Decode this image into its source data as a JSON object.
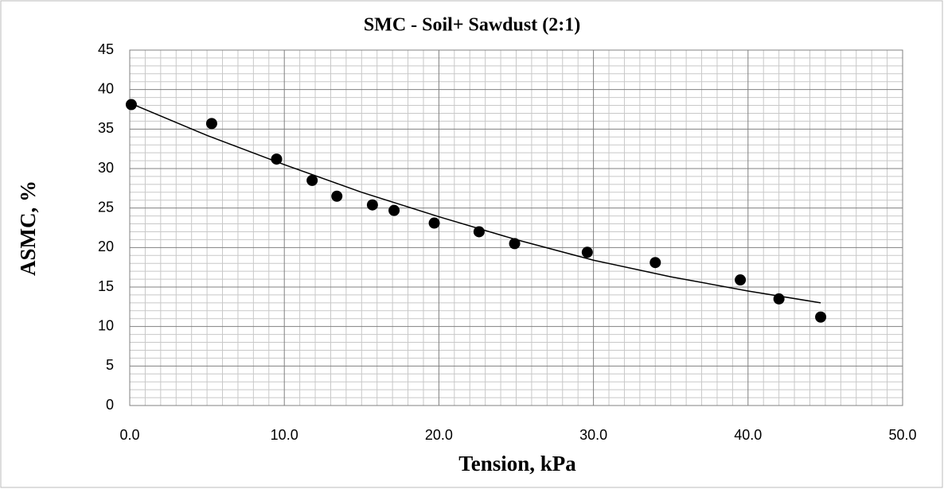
{
  "chart_data": {
    "type": "scatter",
    "title": "SMC - Soil+ Sawdust (2:1)",
    "x_label": "Tension, kPa",
    "y_label": "ASMC, %",
    "xlim": [
      0,
      50
    ],
    "xticks": [
      {
        "value": 0,
        "label": "0.0"
      },
      {
        "value": 10,
        "label": "10.0"
      },
      {
        "value": 20,
        "label": "20.0"
      },
      {
        "value": 30,
        "label": "30.0"
      },
      {
        "value": 40,
        "label": "40.0"
      },
      {
        "value": 50,
        "label": "50.0"
      }
    ],
    "ylim": [
      0,
      45
    ],
    "yticks": [
      0,
      5,
      10,
      15,
      20,
      25,
      30,
      35,
      40,
      45
    ],
    "grid": true,
    "minor_grid": true,
    "series": [
      {
        "type": "scatter",
        "color": "#000000",
        "x": [
          0.1,
          5.3,
          9.5,
          11.8,
          13.4,
          15.7,
          17.1,
          19.7,
          22.6,
          24.9,
          29.6,
          34.0,
          39.5,
          42.0,
          44.7
        ],
        "values": [
          38.1,
          35.7,
          31.2,
          28.5,
          26.5,
          25.4,
          24.7,
          23.1,
          22.0,
          20.5,
          19.4,
          18.1,
          15.9,
          13.5,
          11.2
        ]
      },
      {
        "type": "line",
        "color": "#000000",
        "x": [
          0,
          5,
          10,
          15,
          20,
          25,
          30,
          35,
          40,
          44.7
        ],
        "values": [
          38.3,
          34.2,
          30.5,
          27.0,
          23.9,
          21.0,
          18.4,
          16.3,
          14.5,
          13.0
        ]
      }
    ]
  }
}
